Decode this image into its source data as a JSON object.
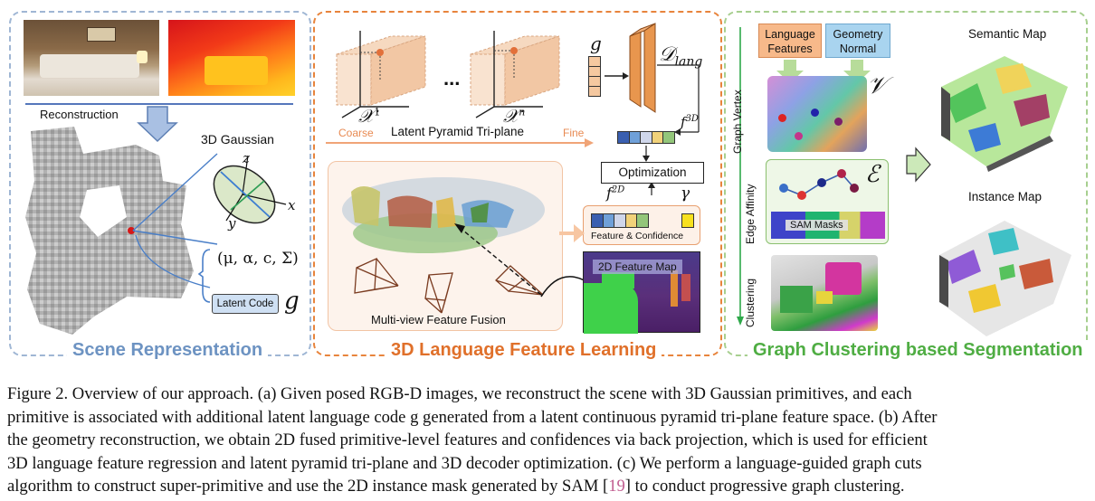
{
  "panels": {
    "scene": {
      "title": "Scene Representation",
      "reconstruction": "Reconstruction",
      "gaussian": "3D Gaussian",
      "axis_z": "z",
      "axis_x": "x",
      "axis_y": "y",
      "params": "(μ, α, c, Σ)",
      "latent_code": "Latent Code",
      "g": "g"
    },
    "language": {
      "title": "3D Language Feature Learning",
      "x1": "𝒳",
      "x1_sup": "1",
      "xn": "𝒳",
      "xn_sup": "n",
      "dots": "...",
      "coarse": "Coarse",
      "fine": "Fine",
      "triplane": "Latent Pyramid Tri-plane",
      "g": "g",
      "decoder": "𝒟",
      "decoder_sub": "lang",
      "f3d": "f",
      "f3d_sup": "3D",
      "optimization": "Optimization",
      "f2d": "f",
      "f2d_sup": "2D",
      "gamma": "γ",
      "feature_conf": "Feature & Confidence",
      "feature_map": "2D Feature Map",
      "fusion": "Multi-view Feature Fusion"
    },
    "graph": {
      "title": "Graph Clustering based Segmentation",
      "lang_features": "Language Features",
      "geom_normal": "Geometry Normal",
      "graph_vertex": "Graph Vertex",
      "v": "𝒱",
      "edge_affinity": "Edge Affinity",
      "e": "ℰ",
      "sam_masks": "SAM Masks",
      "clustering": "Clustering",
      "semantic_map": "Semantic Map",
      "instance_map": "Instance Map"
    }
  },
  "caption": {
    "lines": [
      "Figure 2. Overview of our approach. (a) Given posed RGB-D images, we reconstruct the scene with 3D Gaussian primitives, and each",
      "primitive is associated with additional latent language code g generated from a latent continuous pyramid tri-plane feature space. (b) After",
      "the geometry reconstruction, we obtain 2D fused primitive-level features and confidences via back projection, which is used for efficient",
      "3D language feature regression and latent pyramid tri-plane and 3D decoder optimization. (c) We perform a language-guided graph cuts"
    ],
    "last_line_pre": "algorithm to construct super-primitive and use the 2D instance mask generated by SAM [",
    "last_line_ref": "19",
    "last_line_post": "] to conduct progressive graph clustering."
  },
  "colors": {
    "scene_border": "#9fb6d4",
    "language_border": "#e8843c",
    "graph_border": "#a7cf8f",
    "triplane_orange": "#f2c7a4",
    "decoder": "#e8964e",
    "green_arrow": "#b7dc9a",
    "lang_box": "#f7b98a",
    "geom_box": "#a9d4ef"
  }
}
